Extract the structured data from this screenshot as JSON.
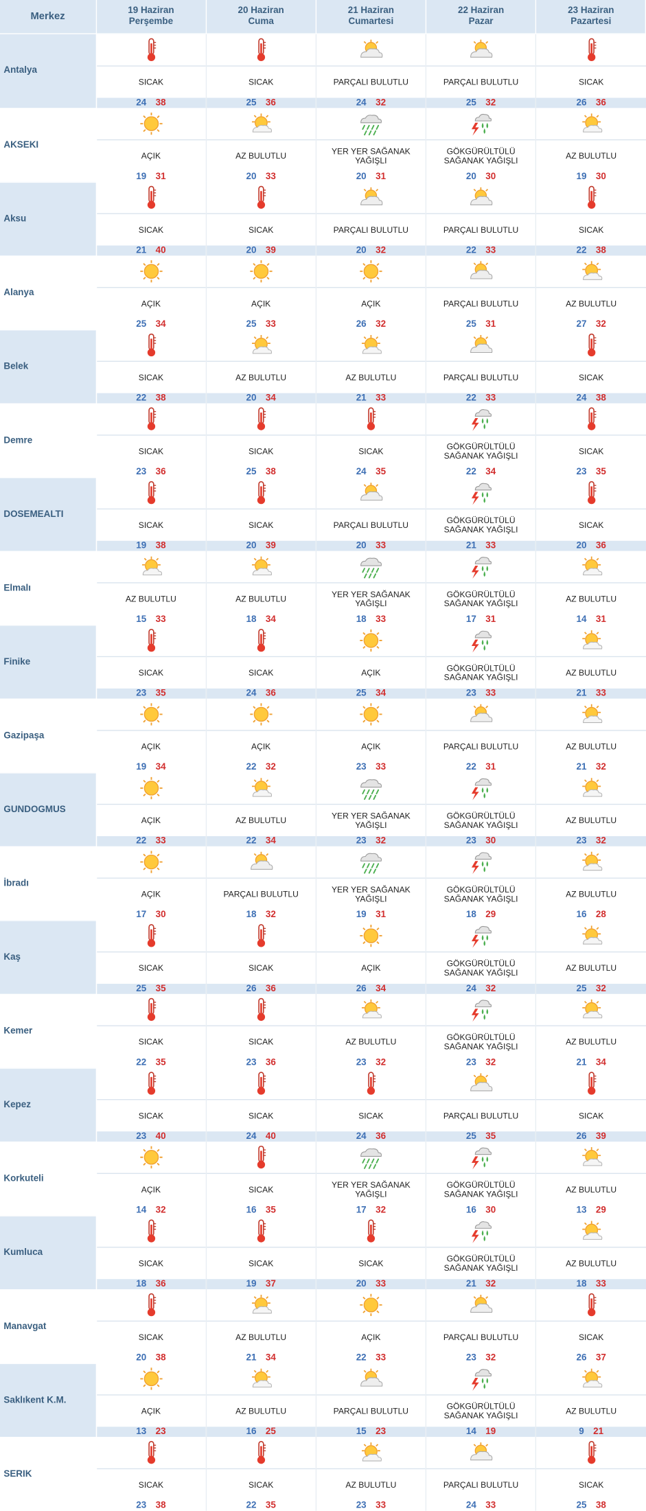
{
  "header": {
    "merkez": "Merkez",
    "days": [
      {
        "date": "19 Haziran",
        "weekday": "Perşembe"
      },
      {
        "date": "20 Haziran",
        "weekday": "Cuma"
      },
      {
        "date": "21 Haziran",
        "weekday": "Cumartesi"
      },
      {
        "date": "22 Haziran",
        "weekday": "Pazar"
      },
      {
        "date": "23 Haziran",
        "weekday": "Pazartesi"
      }
    ]
  },
  "conditions": {
    "hot": "SICAK",
    "clear": "AÇIK",
    "few": "AZ BULUTLU",
    "partly": "PARÇALI BULUTLU",
    "shower": "YER YER SAĞANAK YAĞIŞLI",
    "thunder": "GÖKGÜRÜLTÜLÜ SAĞANAK YAĞIŞLI"
  },
  "icons": {
    "hot": "thermometer-icon",
    "clear": "sun-icon",
    "few": "sun-behind-cloud-icon",
    "partly": "partly-cloudy-icon",
    "shower": "rain-shower-icon",
    "thunder": "thunderstorm-icon"
  },
  "colors": {
    "header_bg": "#dbe7f3",
    "header_text": "#3a5f80",
    "low_temp": "#3d6fb4",
    "high_temp": "#d12d2d"
  },
  "rows": [
    {
      "city": "Antalya",
      "days": [
        {
          "cond": "hot",
          "low": 24,
          "high": 38
        },
        {
          "cond": "hot",
          "low": 25,
          "high": 36
        },
        {
          "cond": "partly",
          "low": 24,
          "high": 32
        },
        {
          "cond": "partly",
          "low": 25,
          "high": 32
        },
        {
          "cond": "hot",
          "low": 26,
          "high": 36
        }
      ]
    },
    {
      "city": "AKSEKI",
      "days": [
        {
          "cond": "clear",
          "low": 19,
          "high": 31
        },
        {
          "cond": "few",
          "low": 20,
          "high": 33
        },
        {
          "cond": "shower",
          "low": 20,
          "high": 31
        },
        {
          "cond": "thunder",
          "low": 20,
          "high": 30
        },
        {
          "cond": "few",
          "low": 19,
          "high": 30
        }
      ]
    },
    {
      "city": "Aksu",
      "days": [
        {
          "cond": "hot",
          "low": 21,
          "high": 40
        },
        {
          "cond": "hot",
          "low": 20,
          "high": 39
        },
        {
          "cond": "partly",
          "low": 20,
          "high": 32
        },
        {
          "cond": "partly",
          "low": 22,
          "high": 33
        },
        {
          "cond": "hot",
          "low": 22,
          "high": 38
        }
      ]
    },
    {
      "city": "Alanya",
      "days": [
        {
          "cond": "clear",
          "low": 25,
          "high": 34
        },
        {
          "cond": "clear",
          "low": 25,
          "high": 33
        },
        {
          "cond": "clear",
          "low": 26,
          "high": 32
        },
        {
          "cond": "partly",
          "low": 25,
          "high": 31
        },
        {
          "cond": "few",
          "low": 27,
          "high": 32
        }
      ]
    },
    {
      "city": "Belek",
      "days": [
        {
          "cond": "hot",
          "low": 22,
          "high": 38
        },
        {
          "cond": "few",
          "low": 20,
          "high": 34
        },
        {
          "cond": "few",
          "low": 21,
          "high": 33
        },
        {
          "cond": "partly",
          "low": 22,
          "high": 33
        },
        {
          "cond": "hot",
          "low": 24,
          "high": 38
        }
      ]
    },
    {
      "city": "Demre",
      "days": [
        {
          "cond": "hot",
          "low": 23,
          "high": 36
        },
        {
          "cond": "hot",
          "low": 25,
          "high": 38
        },
        {
          "cond": "hot",
          "low": 24,
          "high": 35
        },
        {
          "cond": "thunder",
          "low": 22,
          "high": 34
        },
        {
          "cond": "hot",
          "low": 23,
          "high": 35
        }
      ]
    },
    {
      "city": "DOSEMEALTI",
      "days": [
        {
          "cond": "hot",
          "low": 19,
          "high": 38
        },
        {
          "cond": "hot",
          "low": 20,
          "high": 39
        },
        {
          "cond": "partly",
          "low": 20,
          "high": 33
        },
        {
          "cond": "thunder",
          "low": 21,
          "high": 33
        },
        {
          "cond": "hot",
          "low": 20,
          "high": 36
        }
      ]
    },
    {
      "city": "Elmalı",
      "days": [
        {
          "cond": "few",
          "low": 15,
          "high": 33
        },
        {
          "cond": "few",
          "low": 18,
          "high": 34
        },
        {
          "cond": "shower",
          "low": 18,
          "high": 33
        },
        {
          "cond": "thunder",
          "low": 17,
          "high": 31
        },
        {
          "cond": "few",
          "low": 14,
          "high": 31
        }
      ]
    },
    {
      "city": "Finike",
      "days": [
        {
          "cond": "hot",
          "low": 23,
          "high": 35
        },
        {
          "cond": "hot",
          "low": 24,
          "high": 36
        },
        {
          "cond": "clear",
          "low": 25,
          "high": 34
        },
        {
          "cond": "thunder",
          "low": 23,
          "high": 33
        },
        {
          "cond": "few",
          "low": 21,
          "high": 33
        }
      ]
    },
    {
      "city": "Gazipaşa",
      "days": [
        {
          "cond": "clear",
          "low": 19,
          "high": 34
        },
        {
          "cond": "clear",
          "low": 22,
          "high": 32
        },
        {
          "cond": "clear",
          "low": 23,
          "high": 33
        },
        {
          "cond": "partly",
          "low": 22,
          "high": 31
        },
        {
          "cond": "few",
          "low": 21,
          "high": 32
        }
      ]
    },
    {
      "city": "GUNDOGMUS",
      "days": [
        {
          "cond": "clear",
          "low": 22,
          "high": 33
        },
        {
          "cond": "few",
          "low": 22,
          "high": 34
        },
        {
          "cond": "shower",
          "low": 23,
          "high": 32
        },
        {
          "cond": "thunder",
          "low": 23,
          "high": 30
        },
        {
          "cond": "few",
          "low": 23,
          "high": 32
        }
      ]
    },
    {
      "city": "İbradı",
      "days": [
        {
          "cond": "clear",
          "low": 17,
          "high": 30
        },
        {
          "cond": "partly",
          "low": 18,
          "high": 32
        },
        {
          "cond": "shower",
          "low": 19,
          "high": 31
        },
        {
          "cond": "thunder",
          "low": 18,
          "high": 29
        },
        {
          "cond": "few",
          "low": 16,
          "high": 28
        }
      ]
    },
    {
      "city": "Kaş",
      "days": [
        {
          "cond": "hot",
          "low": 25,
          "high": 35
        },
        {
          "cond": "hot",
          "low": 26,
          "high": 36
        },
        {
          "cond": "clear",
          "low": 26,
          "high": 34
        },
        {
          "cond": "thunder",
          "low": 24,
          "high": 32
        },
        {
          "cond": "few",
          "low": 25,
          "high": 32
        }
      ]
    },
    {
      "city": "Kemer",
      "days": [
        {
          "cond": "hot",
          "low": 22,
          "high": 35
        },
        {
          "cond": "hot",
          "low": 23,
          "high": 36
        },
        {
          "cond": "few",
          "low": 23,
          "high": 32
        },
        {
          "cond": "thunder",
          "low": 23,
          "high": 32
        },
        {
          "cond": "few",
          "low": 21,
          "high": 34
        }
      ]
    },
    {
      "city": "Kepez",
      "days": [
        {
          "cond": "hot",
          "low": 23,
          "high": 40
        },
        {
          "cond": "hot",
          "low": 24,
          "high": 40
        },
        {
          "cond": "hot",
          "low": 24,
          "high": 36
        },
        {
          "cond": "partly",
          "low": 25,
          "high": 35
        },
        {
          "cond": "hot",
          "low": 26,
          "high": 39
        }
      ]
    },
    {
      "city": "Korkuteli",
      "days": [
        {
          "cond": "clear",
          "low": 14,
          "high": 32
        },
        {
          "cond": "hot",
          "low": 16,
          "high": 35
        },
        {
          "cond": "shower",
          "low": 17,
          "high": 32
        },
        {
          "cond": "thunder",
          "low": 16,
          "high": 30
        },
        {
          "cond": "few",
          "low": 13,
          "high": 29
        }
      ]
    },
    {
      "city": "Kumluca",
      "days": [
        {
          "cond": "hot",
          "low": 18,
          "high": 36
        },
        {
          "cond": "hot",
          "low": 19,
          "high": 37
        },
        {
          "cond": "hot",
          "low": 20,
          "high": 33
        },
        {
          "cond": "thunder",
          "low": 21,
          "high": 32
        },
        {
          "cond": "few",
          "low": 18,
          "high": 33
        }
      ]
    },
    {
      "city": "Manavgat",
      "days": [
        {
          "cond": "hot",
          "low": 20,
          "high": 38
        },
        {
          "cond": "few",
          "low": 21,
          "high": 34
        },
        {
          "cond": "clear",
          "low": 22,
          "high": 33
        },
        {
          "cond": "partly",
          "low": 23,
          "high": 32
        },
        {
          "cond": "hot",
          "low": 26,
          "high": 37
        }
      ]
    },
    {
      "city": "Saklıkent K.M.",
      "days": [
        {
          "cond": "clear",
          "low": 13,
          "high": 23
        },
        {
          "cond": "few",
          "low": 16,
          "high": 25
        },
        {
          "cond": "partly",
          "low": 15,
          "high": 23
        },
        {
          "cond": "thunder",
          "low": 14,
          "high": 19
        },
        {
          "cond": "few",
          "low": 9,
          "high": 21
        }
      ]
    },
    {
      "city": "SERIK",
      "days": [
        {
          "cond": "hot",
          "low": 23,
          "high": 38
        },
        {
          "cond": "hot",
          "low": 22,
          "high": 35
        },
        {
          "cond": "few",
          "low": 23,
          "high": 33
        },
        {
          "cond": "partly",
          "low": 24,
          "high": 33
        },
        {
          "cond": "hot",
          "low": 25,
          "high": 38
        }
      ]
    }
  ]
}
